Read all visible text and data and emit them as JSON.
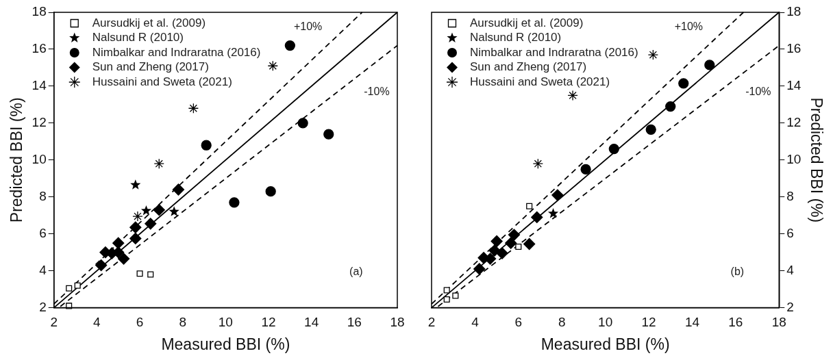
{
  "chart_data": [
    {
      "type": "scatter",
      "xlabel": "Measured BBI (%)",
      "ylabel": "Predicted BBI (%)",
      "xlim": [
        2,
        18
      ],
      "ylim": [
        2,
        18
      ],
      "xticks": [
        2,
        4,
        6,
        8,
        10,
        12,
        14,
        16,
        18
      ],
      "yticks": [
        2,
        4,
        6,
        8,
        10,
        12,
        14,
        16,
        18
      ],
      "grid": false,
      "legend": "top left",
      "series": [
        {
          "name": "Aursudkij et al. (2009)",
          "marker": "square",
          "color": "#000000",
          "x": [
            2.7,
            3.1,
            2.7,
            6.0,
            6.5
          ],
          "values": [
            3.05,
            3.2,
            2.1,
            3.85,
            3.8
          ]
        },
        {
          "name": "Nalsund R (2010)",
          "marker": "star",
          "color": "#000000",
          "x": [
            5.8,
            6.3,
            7.6
          ],
          "values": [
            8.65,
            7.25,
            7.2
          ]
        },
        {
          "name": "Nimbalkar and Indraratna (2016)",
          "marker": "circle",
          "color": "#000000",
          "x": [
            13.0,
            9.1,
            13.6,
            14.8,
            10.4,
            12.1
          ],
          "values": [
            16.2,
            10.8,
            12.0,
            11.4,
            7.7,
            8.3
          ]
        },
        {
          "name": "Sun and Zheng (2017)",
          "marker": "diamond",
          "color": "#000000",
          "x": [
            7.8,
            6.9,
            6.5,
            5.8,
            5.8,
            5.0,
            4.4,
            4.7,
            5.0,
            4.2,
            5.25
          ],
          "values": [
            8.4,
            7.3,
            6.55,
            6.35,
            5.75,
            5.5,
            5.0,
            4.95,
            5.0,
            4.3,
            4.65
          ]
        },
        {
          "name": "Hussaini and Sweta (2021)",
          "marker": "cross",
          "color": "#000000",
          "x": [
            12.2,
            8.5,
            6.9,
            5.9
          ],
          "values": [
            15.1,
            12.8,
            9.8,
            6.95
          ]
        },
        {
          "type": "line",
          "line_style": "solid",
          "marker": "none",
          "color": "#000000",
          "x": [
            2,
            18
          ],
          "values": [
            2,
            18
          ]
        },
        {
          "type": "line",
          "line_style": "dashed",
          "marker": "none",
          "color": "#000000",
          "x": [
            2,
            16.36
          ],
          "values": [
            2.2,
            18
          ]
        },
        {
          "type": "line",
          "line_style": "dashed",
          "marker": "none",
          "color": "#000000",
          "x": [
            2.3,
            18
          ],
          "values": [
            2.07,
            16.2
          ]
        }
      ],
      "annotations": [
        "+10%",
        "-10%",
        "(a)"
      ]
    },
    {
      "type": "scatter",
      "xlabel": "Measured BBI (%)",
      "ylabel": "Predicted BBI (%)",
      "xlim": [
        2,
        18
      ],
      "ylim": [
        2,
        18
      ],
      "xticks": [
        2,
        4,
        6,
        8,
        10,
        12,
        14,
        16,
        18
      ],
      "yticks": [
        2,
        4,
        6,
        8,
        10,
        12,
        14,
        16,
        18
      ],
      "grid": false,
      "legend": "top left",
      "series": [
        {
          "name": "Aursudkij et al. (2009)",
          "marker": "square",
          "color": "#000000",
          "x": [
            2.7,
            2.7,
            3.1,
            6.5,
            6.0
          ],
          "values": [
            2.95,
            2.45,
            2.65,
            7.5,
            5.3
          ]
        },
        {
          "name": "Nalsund R (2010)",
          "marker": "star",
          "color": "#000000",
          "x": [
            7.6
          ],
          "values": [
            7.1
          ]
        },
        {
          "name": "Nimbalkar and Indraratna (2016)",
          "marker": "circle",
          "color": "#000000",
          "x": [
            9.1,
            10.4,
            12.1,
            13.0,
            13.6,
            14.8
          ],
          "values": [
            9.5,
            10.6,
            11.65,
            12.9,
            14.15,
            15.15
          ]
        },
        {
          "name": "Sun and Zheng (2017)",
          "marker": "diamond",
          "color": "#000000",
          "x": [
            7.8,
            6.85,
            5.8,
            5.65,
            6.5,
            5.0,
            4.9,
            5.25,
            4.4,
            4.7,
            4.2
          ],
          "values": [
            8.1,
            6.9,
            5.95,
            5.5,
            5.45,
            5.6,
            5.1,
            4.95,
            4.7,
            4.65,
            4.1
          ]
        },
        {
          "name": "Hussaini and Sweta (2021)",
          "marker": "cross",
          "color": "#000000",
          "x": [
            12.2,
            8.5,
            6.9
          ],
          "values": [
            15.7,
            13.5,
            9.8
          ]
        },
        {
          "type": "line",
          "line_style": "solid",
          "marker": "none",
          "color": "#000000",
          "x": [
            2,
            18
          ],
          "values": [
            2,
            18
          ]
        },
        {
          "type": "line",
          "line_style": "dashed",
          "marker": "none",
          "color": "#000000",
          "x": [
            2,
            16.36
          ],
          "values": [
            2.2,
            18
          ]
        },
        {
          "type": "line",
          "line_style": "dashed",
          "marker": "none",
          "color": "#000000",
          "x": [
            2.3,
            18
          ],
          "values": [
            2.07,
            16.2
          ]
        }
      ],
      "annotations": [
        "+10%",
        "-10%",
        "(b)"
      ]
    }
  ]
}
